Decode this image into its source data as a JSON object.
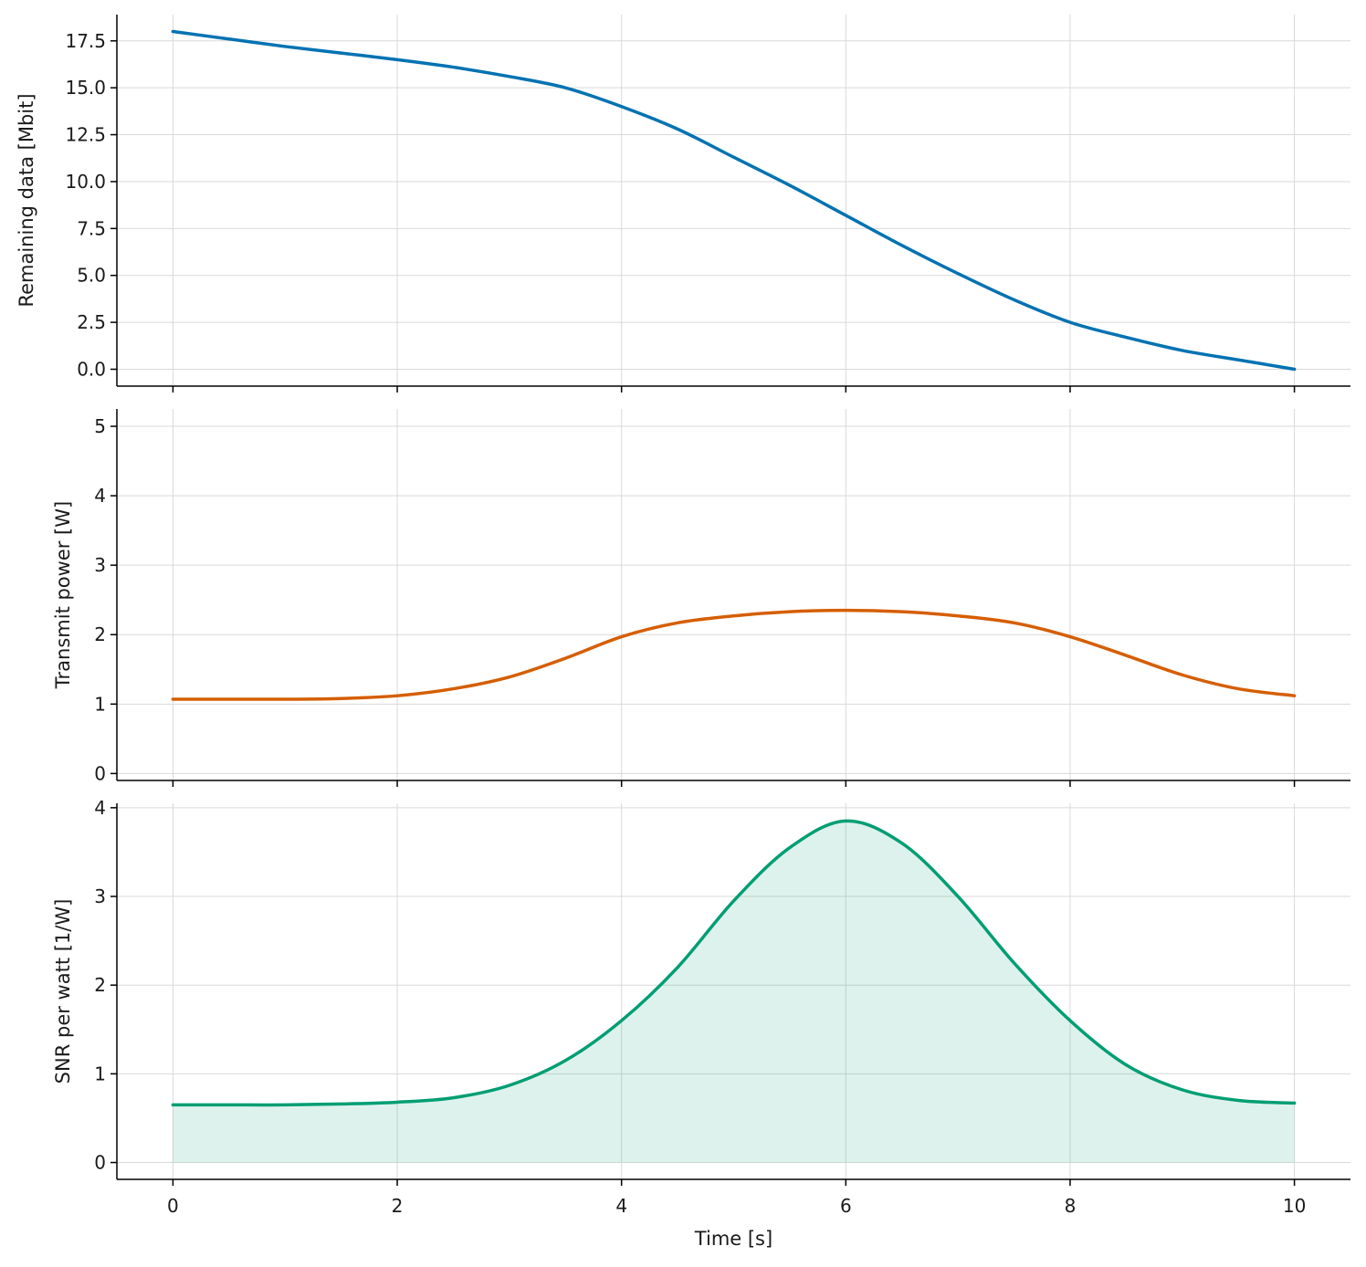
{
  "chart_data": [
    {
      "type": "line",
      "title": "",
      "xlabel": "",
      "ylabel": "Remaining data [Mbit]",
      "xlim": [
        -0.5,
        10.5
      ],
      "ylim": [
        -0.9,
        18.9
      ],
      "xticks": [
        0,
        2,
        4,
        6,
        8,
        10
      ],
      "yticks": [
        0.0,
        2.5,
        5.0,
        7.5,
        10.0,
        12.5,
        15.0,
        17.5
      ],
      "ytick_labels": [
        "0.0",
        "2.5",
        "5.0",
        "7.5",
        "10.0",
        "12.5",
        "15.0",
        "17.5"
      ],
      "show_x_tick_labels": false,
      "grid": true,
      "series": [
        {
          "color": "#0072B2",
          "fill": false,
          "x": [
            0,
            0.5,
            1,
            1.5,
            2,
            2.5,
            3,
            3.5,
            4,
            4.5,
            5,
            5.5,
            6,
            6.5,
            7,
            7.5,
            8,
            8.5,
            9,
            9.5,
            10
          ],
          "y": [
            18.0,
            17.6,
            17.2,
            16.85,
            16.5,
            16.1,
            15.6,
            15.0,
            14.0,
            12.8,
            11.3,
            9.8,
            8.2,
            6.6,
            5.1,
            3.7,
            2.5,
            1.7,
            1.0,
            0.5,
            0.0
          ]
        }
      ]
    },
    {
      "type": "line",
      "title": "",
      "xlabel": "",
      "ylabel": "Transmit power [W]",
      "xlim": [
        -0.5,
        10.5
      ],
      "ylim": [
        -0.1,
        5.25
      ],
      "xticks": [
        0,
        2,
        4,
        6,
        8,
        10
      ],
      "yticks": [
        0,
        1,
        2,
        3,
        4,
        5
      ],
      "ytick_labels": [
        "0",
        "1",
        "2",
        "3",
        "4",
        "5"
      ],
      "show_x_tick_labels": false,
      "grid": true,
      "series": [
        {
          "color": "#D55E00",
          "fill": false,
          "x": [
            0,
            0.5,
            1,
            1.5,
            2,
            2.5,
            3,
            3.5,
            4,
            4.5,
            5,
            5.5,
            6,
            6.5,
            7,
            7.5,
            8,
            8.5,
            9,
            9.5,
            10
          ],
          "y": [
            1.07,
            1.07,
            1.07,
            1.08,
            1.12,
            1.22,
            1.39,
            1.66,
            1.97,
            2.17,
            2.27,
            2.33,
            2.35,
            2.33,
            2.27,
            2.17,
            1.97,
            1.7,
            1.42,
            1.22,
            1.12
          ]
        }
      ]
    },
    {
      "type": "area",
      "title": "",
      "xlabel": "Time [s]",
      "ylabel": "SNR per watt [1/W]",
      "xlim": [
        -0.5,
        10.5
      ],
      "ylim": [
        -0.19,
        4.05
      ],
      "xticks": [
        0,
        2,
        4,
        6,
        8,
        10
      ],
      "xtick_labels": [
        "0",
        "2",
        "4",
        "6",
        "8",
        "10"
      ],
      "yticks": [
        0,
        1,
        2,
        3,
        4
      ],
      "ytick_labels": [
        "0",
        "1",
        "2",
        "3",
        "4"
      ],
      "show_x_tick_labels": true,
      "grid": true,
      "series": [
        {
          "color": "#009E73",
          "fill": true,
          "fill_color": "#009E73",
          "fill_opacity": 0.13,
          "x": [
            0,
            0.5,
            1,
            1.5,
            2,
            2.5,
            3,
            3.5,
            4,
            4.5,
            5,
            5.5,
            6,
            6.5,
            7,
            7.5,
            8,
            8.5,
            9,
            9.5,
            10
          ],
          "y": [
            0.65,
            0.65,
            0.65,
            0.66,
            0.68,
            0.73,
            0.87,
            1.15,
            1.6,
            2.2,
            2.95,
            3.55,
            3.85,
            3.6,
            3.0,
            2.25,
            1.6,
            1.1,
            0.82,
            0.7,
            0.67
          ]
        }
      ]
    }
  ]
}
